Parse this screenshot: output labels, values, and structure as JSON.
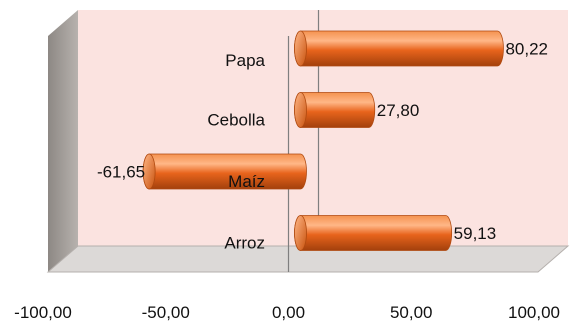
{
  "chart_data": {
    "type": "bar",
    "orientation": "horizontal",
    "style": "3d-cylinder",
    "categories": [
      "Papa",
      "Cebolla",
      "Maíz",
      "Arroz"
    ],
    "values": [
      80.22,
      27.8,
      -61.65,
      59.13
    ],
    "value_labels": [
      "80,22",
      "27,80",
      "-61,65",
      "59,13"
    ],
    "xlim": [
      -100,
      100
    ],
    "x_ticks": [
      -100,
      -50,
      0,
      50,
      100
    ],
    "x_tick_labels": [
      "-100,00",
      "-50,00",
      "0,00",
      "50,00",
      "100,00"
    ],
    "title": "",
    "xlabel": "",
    "ylabel": "",
    "grid": false,
    "legend": "none",
    "colors": {
      "bar": "#e8641c",
      "bar_light": "#ffb07a",
      "bar_dark": "#9c3a08",
      "plot_back": "#fbe3e0",
      "wall_side": "#9a9490",
      "floor": "#d9d6d4"
    }
  }
}
